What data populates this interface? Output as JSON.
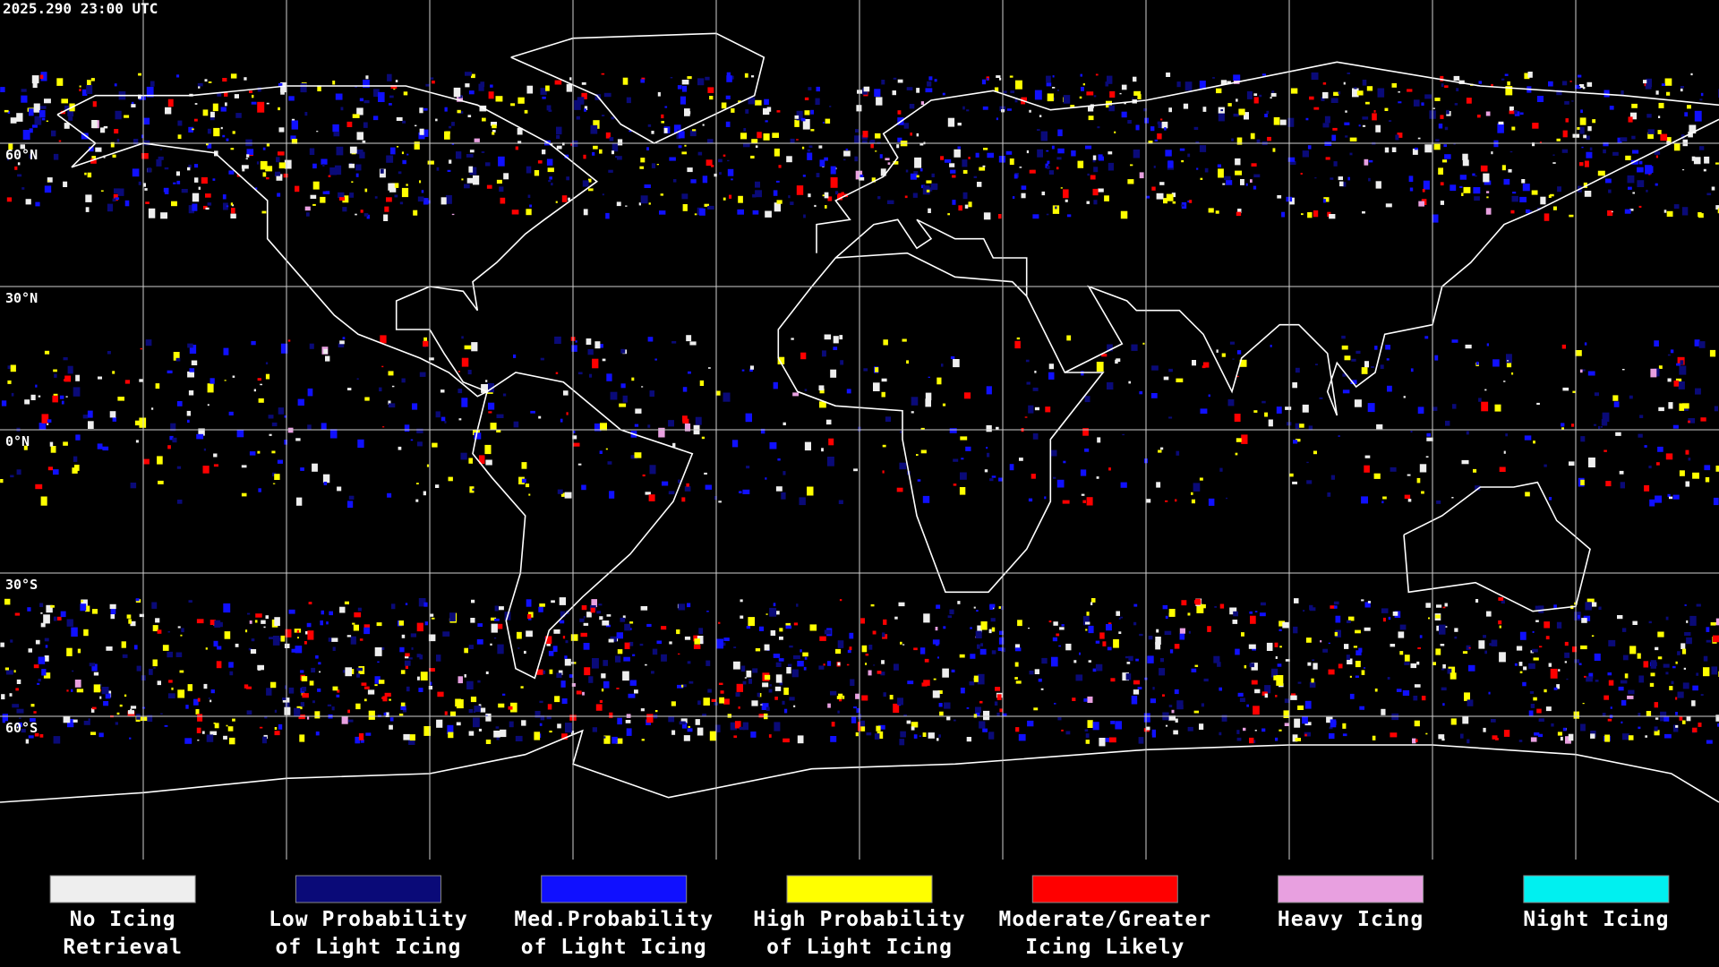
{
  "timestamp": "2025.290 23:00 UTC",
  "latitude_labels": [
    "60°N",
    "30°N",
    "0°N",
    "30°S",
    "60°S"
  ],
  "legend": [
    {
      "color": "#eeeeee",
      "lines": [
        "No Icing",
        "Retrieval"
      ]
    },
    {
      "color": "#0a0a78",
      "lines": [
        "Low Probability",
        "of Light Icing"
      ]
    },
    {
      "color": "#1010ff",
      "lines": [
        "Med.Probability",
        "of Light Icing"
      ]
    },
    {
      "color": "#ffff00",
      "lines": [
        "High Probability",
        "of Light Icing"
      ]
    },
    {
      "color": "#ff0000",
      "lines": [
        "Moderate/Greater",
        "Icing Likely"
      ]
    },
    {
      "color": "#e8a0e0",
      "lines": [
        "Heavy Icing"
      ]
    },
    {
      "color": "#00f0f0",
      "lines": [
        "Night Icing"
      ]
    }
  ]
}
